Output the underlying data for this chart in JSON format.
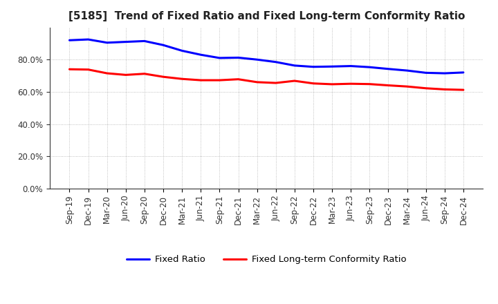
{
  "title": "[5185]  Trend of Fixed Ratio and Fixed Long-term Conformity Ratio",
  "x_labels": [
    "Sep-19",
    "Dec-19",
    "Mar-20",
    "Jun-20",
    "Sep-20",
    "Dec-20",
    "Mar-21",
    "Jun-21",
    "Sep-21",
    "Dec-21",
    "Mar-22",
    "Jun-22",
    "Sep-22",
    "Dec-22",
    "Mar-23",
    "Jun-23",
    "Sep-23",
    "Dec-23",
    "Mar-24",
    "Jun-24",
    "Sep-24",
    "Dec-24"
  ],
  "fixed_ratio": [
    0.92,
    0.925,
    0.905,
    0.91,
    0.915,
    0.89,
    0.855,
    0.83,
    0.81,
    0.812,
    0.8,
    0.785,
    0.763,
    0.755,
    0.757,
    0.76,
    0.753,
    0.742,
    0.732,
    0.718,
    0.715,
    0.72
  ],
  "fixed_lt_ratio": [
    0.74,
    0.738,
    0.715,
    0.705,
    0.712,
    0.693,
    0.68,
    0.672,
    0.672,
    0.678,
    0.66,
    0.655,
    0.668,
    0.652,
    0.647,
    0.65,
    0.648,
    0.64,
    0.633,
    0.622,
    0.615,
    0.612
  ],
  "line_color_fixed": "#0000FF",
  "line_color_lt": "#FF0000",
  "ylim": [
    0,
    1.0
  ],
  "yticks": [
    0.0,
    0.2,
    0.4,
    0.6,
    0.8
  ],
  "background_color": "#FFFFFF",
  "plot_bg_color": "#FFFFFF",
  "grid_color": "#999999",
  "title_fontsize": 11,
  "tick_fontsize": 8.5,
  "legend_labels": [
    "Fixed Ratio",
    "Fixed Long-term Conformity Ratio"
  ]
}
